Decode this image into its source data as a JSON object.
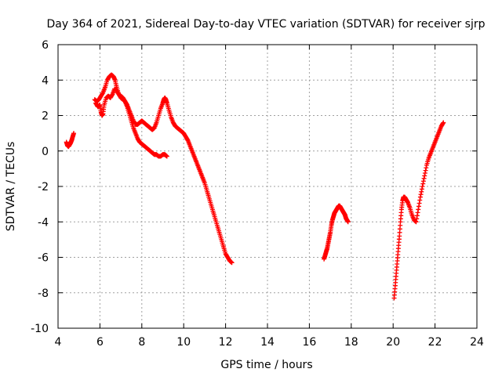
{
  "chart_data": {
    "type": "scatter",
    "title": "Day 364 of 2021, Sidereal Day-to-day VTEC variation (SDTVAR) for receiver sjrp",
    "xlabel": "GPS time / hours",
    "ylabel": "SDTVAR / TECUs",
    "xlim": [
      4,
      24
    ],
    "ylim": [
      -10,
      6
    ],
    "xticks": [
      4,
      6,
      8,
      10,
      12,
      14,
      16,
      18,
      20,
      22,
      24
    ],
    "yticks": [
      -10,
      -8,
      -6,
      -4,
      -2,
      0,
      2,
      4,
      6
    ],
    "grid": true,
    "marker": "+",
    "series_color": "#ff0000",
    "series": [
      {
        "name": "segment-1",
        "x": [
          4.4,
          4.45,
          4.5,
          4.55,
          4.6,
          4.65,
          4.7,
          4.75
        ],
        "y": [
          0.5,
          0.3,
          0.25,
          0.35,
          0.45,
          0.6,
          0.8,
          1.0
        ]
      },
      {
        "name": "segment-2-upper",
        "x": [
          5.75,
          5.85,
          5.95,
          6.05,
          6.15,
          6.25,
          6.35,
          6.45,
          6.55,
          6.65,
          6.72,
          6.8,
          6.9,
          7.0,
          7.1,
          7.2,
          7.3,
          7.4,
          7.5,
          7.6,
          7.7,
          7.8,
          7.9,
          8.0,
          8.1,
          8.2,
          8.3,
          8.4,
          8.5,
          8.6,
          8.7,
          8.8,
          8.9,
          9.0,
          9.05,
          9.1,
          9.15,
          9.2,
          9.3,
          9.4,
          9.5,
          9.6,
          9.7,
          9.8,
          9.9,
          10.0,
          10.1,
          10.2,
          10.3,
          10.4,
          10.5,
          10.6,
          10.7,
          10.8,
          10.9,
          11.0,
          11.1,
          11.2,
          11.3,
          11.4,
          11.5,
          11.6,
          11.7,
          11.8,
          11.9,
          12.0,
          12.1,
          12.2,
          12.3
        ],
        "y": [
          2.9,
          2.8,
          2.9,
          3.1,
          3.3,
          3.6,
          4.0,
          4.2,
          4.3,
          4.2,
          4.0,
          3.6,
          3.2,
          3.0,
          2.9,
          2.8,
          2.6,
          2.3,
          2.0,
          1.7,
          1.5,
          1.5,
          1.6,
          1.7,
          1.6,
          1.5,
          1.4,
          1.3,
          1.2,
          1.3,
          1.6,
          2.0,
          2.4,
          2.7,
          2.9,
          3.0,
          2.9,
          2.7,
          2.3,
          1.9,
          1.6,
          1.4,
          1.3,
          1.2,
          1.1,
          1.0,
          0.8,
          0.6,
          0.3,
          0.0,
          -0.3,
          -0.6,
          -0.9,
          -1.2,
          -1.5,
          -1.8,
          -2.2,
          -2.6,
          -3.0,
          -3.4,
          -3.8,
          -4.2,
          -4.6,
          -5.0,
          -5.4,
          -5.8,
          -6.0,
          -6.2,
          -6.3
        ]
      },
      {
        "name": "segment-2-lower",
        "x": [
          5.8,
          5.9,
          6.0,
          6.05,
          6.1,
          6.15,
          6.2,
          6.3,
          6.4,
          6.5,
          6.6,
          6.7,
          6.8,
          6.9,
          7.0,
          7.1,
          7.2,
          7.3,
          7.4,
          7.5,
          7.6,
          7.7,
          7.8,
          7.9,
          8.0,
          8.1,
          8.2,
          8.3,
          8.4,
          8.5,
          8.6,
          8.7,
          8.8,
          8.9,
          9.0,
          9.1,
          9.2
        ],
        "y": [
          2.7,
          2.5,
          2.6,
          2.2,
          2.0,
          2.1,
          2.6,
          3.0,
          3.1,
          3.0,
          3.2,
          3.5,
          3.4,
          3.2,
          3.1,
          3.0,
          2.8,
          2.5,
          2.1,
          1.7,
          1.3,
          1.0,
          0.7,
          0.5,
          0.4,
          0.3,
          0.2,
          0.1,
          0.0,
          -0.1,
          -0.2,
          -0.2,
          -0.3,
          -0.3,
          -0.2,
          -0.2,
          -0.3
        ]
      },
      {
        "name": "segment-3",
        "x": [
          16.7,
          16.75,
          16.8,
          16.85,
          16.9,
          16.95,
          17.0,
          17.05,
          17.1,
          17.15,
          17.2,
          17.25,
          17.3,
          17.35,
          17.4,
          17.45,
          17.5,
          17.55,
          17.6,
          17.65,
          17.7,
          17.75,
          17.8,
          17.85
        ],
        "y": [
          -6.1,
          -5.9,
          -5.7,
          -5.5,
          -5.2,
          -4.9,
          -4.6,
          -4.2,
          -3.9,
          -3.7,
          -3.5,
          -3.4,
          -3.3,
          -3.2,
          -3.1,
          -3.1,
          -3.2,
          -3.3,
          -3.4,
          -3.5,
          -3.6,
          -3.8,
          -3.9,
          -4.0
        ]
      },
      {
        "name": "segment-4",
        "x": [
          20.05,
          20.1,
          20.15,
          20.2,
          20.25,
          20.3,
          20.35,
          20.4,
          20.45,
          20.5,
          20.55,
          20.6,
          20.65,
          20.7,
          20.8,
          20.9,
          21.0,
          21.1,
          21.2,
          21.3,
          21.4,
          21.5,
          21.6,
          21.7,
          21.8,
          21.9,
          22.0,
          22.1,
          22.2,
          22.3,
          22.4
        ],
        "y": [
          -8.3,
          -7.6,
          -6.9,
          -6.2,
          -5.5,
          -4.8,
          -4.0,
          -3.3,
          -2.8,
          -2.6,
          -2.6,
          -2.7,
          -2.8,
          -2.9,
          -3.2,
          -3.6,
          -3.9,
          -4.0,
          -3.3,
          -2.6,
          -2.0,
          -1.4,
          -0.8,
          -0.4,
          -0.1,
          0.2,
          0.5,
          0.8,
          1.1,
          1.4,
          1.6
        ]
      }
    ]
  }
}
